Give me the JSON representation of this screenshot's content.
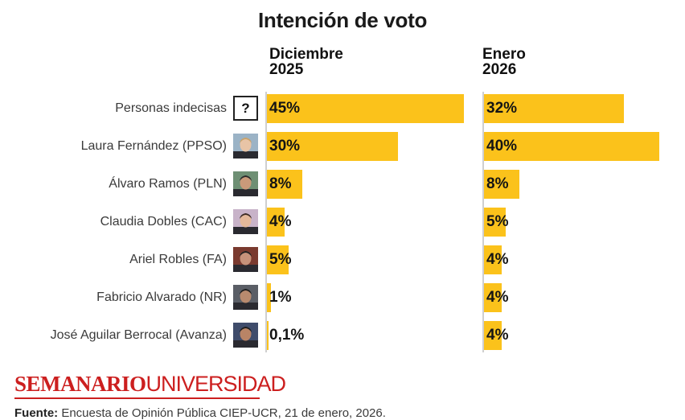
{
  "colors": {
    "bar": "#fbc21b",
    "brand": "#cc1f1f",
    "axis": "#cfcfcf"
  },
  "chart_data": {
    "type": "bar",
    "orientation": "horizontal",
    "title": "Intención de voto",
    "xlim": [
      0,
      45
    ],
    "categories": [
      "Personas indecisas",
      "Laura Fernández (PPSO)",
      "Álvaro Ramos (PLN)",
      "Claudia Dobles (CAC)",
      "Ariel Robles (FA)",
      "Fabricio Alvarado (NR)",
      "José Aguilar Berrocal (Avanza)"
    ],
    "icons": [
      "question-mark-icon",
      "candidate-photo",
      "candidate-photo",
      "candidate-photo",
      "candidate-photo",
      "candidate-photo",
      "candidate-photo"
    ],
    "question_mark": "?",
    "series": [
      {
        "name_line1": "Diciembre",
        "name_line2": "2025",
        "values": [
          45,
          30,
          8,
          4,
          5,
          1,
          0.1
        ],
        "labels": [
          "45%",
          "30%",
          "8%",
          "4%",
          "5%",
          "1%",
          "0,1%"
        ]
      },
      {
        "name_line1": "Enero",
        "name_line2": "2026",
        "values": [
          32,
          40,
          8,
          5,
          4,
          4,
          4
        ],
        "labels": [
          "32%",
          "40%",
          "8%",
          "5%",
          "4%",
          "4%",
          "4%"
        ]
      }
    ]
  },
  "footer": {
    "brand_bold": "SEMANARIO",
    "brand_light": "UNIVERSIDAD",
    "source_label": "Fuente:",
    "source_text": " Encuesta de Opinión Pública CIEP-UCR, 21 de enero, 2026."
  }
}
